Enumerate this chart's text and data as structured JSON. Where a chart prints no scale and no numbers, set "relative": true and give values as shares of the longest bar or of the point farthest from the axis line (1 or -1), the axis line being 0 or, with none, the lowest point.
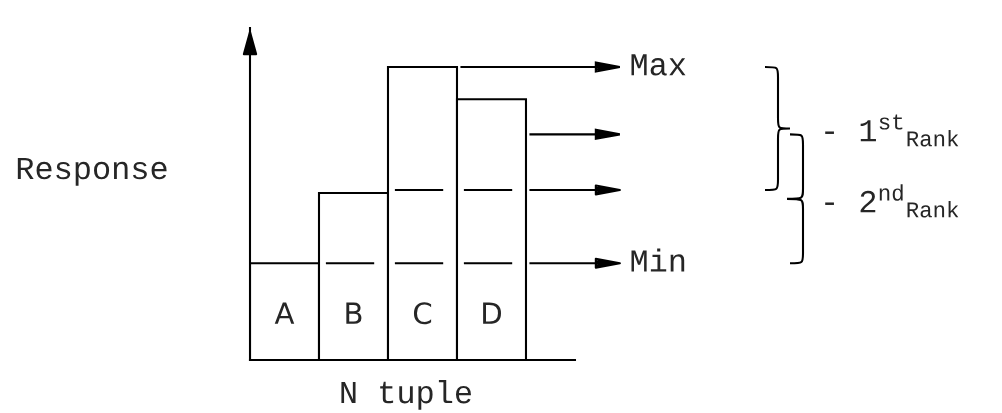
{
  "chart_data": {
    "type": "bar",
    "relative": true,
    "xlabel": "N tuple",
    "ylabel": "Response",
    "categories": [
      "A",
      "B",
      "C",
      "D"
    ],
    "values": [
      0.33,
      0.57,
      1,
      0.89
    ],
    "color": "#ffffff",
    "ref_lines": [
      {
        "axis": "y",
        "value": 1,
        "label": "Max",
        "line_style": "solid",
        "color": "#000000"
      },
      {
        "axis": "y",
        "value": 0.77,
        "line_style": "solid",
        "color": "#000000"
      },
      {
        "axis": "y",
        "value": 0.58,
        "line_style": "dashed",
        "color": "#000000"
      },
      {
        "axis": "y",
        "value": 0.33,
        "label": "Min",
        "line_style": "dashed",
        "color": "#000000"
      }
    ],
    "annotations": [
      "- 1$^{st}$$_{Rank}$",
      "- 2$^{nd}$$_{Rank}$"
    ]
  }
}
